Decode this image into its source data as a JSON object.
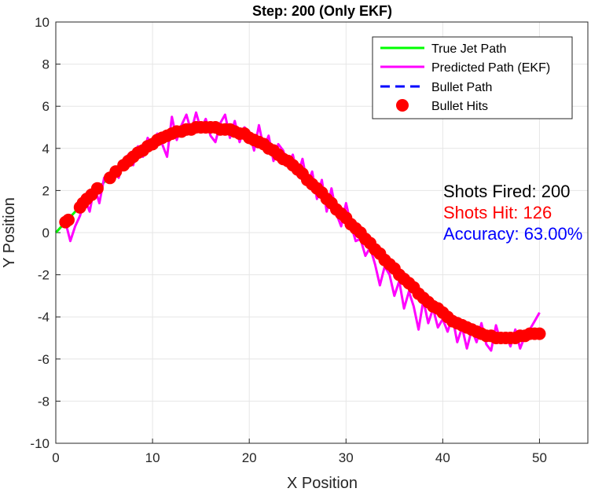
{
  "chart_data": {
    "type": "line",
    "title": "Step: 200 (Only EKF)",
    "xlabel": "X Position",
    "ylabel": "Y Position",
    "xlim": [
      0,
      55
    ],
    "ylim": [
      -10,
      10
    ],
    "xticks": [
      "0",
      "10",
      "20",
      "30",
      "40",
      "50"
    ],
    "yticks": [
      "-10",
      "-8",
      "-6",
      "-4",
      "-2",
      "0",
      "2",
      "4",
      "6",
      "8",
      "10"
    ],
    "grid": true,
    "legend_placement": "top-right",
    "legend": [
      {
        "label": "True Jet Path",
        "color": "#00ff00",
        "style": "solid-line"
      },
      {
        "label": "Predicted Path (EKF)",
        "color": "#ff00ff",
        "style": "solid-line"
      },
      {
        "label": "Bullet Path",
        "color": "#0000ff",
        "style": "dashed-line"
      },
      {
        "label": "Bullet Hits",
        "color": "#ff0000",
        "style": "circle-marker"
      }
    ],
    "true_path": {
      "formula": "y = 5*sin(x/10)",
      "x_start": 0,
      "x_end": 50
    },
    "predicted_path": {
      "x": [
        1.0,
        1.5,
        2.0,
        2.5,
        3.0,
        3.5,
        4.0,
        4.5,
        5.0,
        5.5,
        6.0,
        6.5,
        7.0,
        7.5,
        8.0,
        8.5,
        9.0,
        9.5,
        10.0,
        10.5,
        11.0,
        11.5,
        12.0,
        12.5,
        13.0,
        13.5,
        14.0,
        14.5,
        15.0,
        15.5,
        16.0,
        16.5,
        17.0,
        17.5,
        18.0,
        18.5,
        19.0,
        19.5,
        20.0,
        20.5,
        21.0,
        21.5,
        22.0,
        22.5,
        23.0,
        23.5,
        24.0,
        24.5,
        25.0,
        25.5,
        26.0,
        26.5,
        27.0,
        27.5,
        28.0,
        28.5,
        29.0,
        29.5,
        30.0,
        30.5,
        31.0,
        31.5,
        32.0,
        32.5,
        33.0,
        33.5,
        34.0,
        34.5,
        35.0,
        35.5,
        36.0,
        36.5,
        37.0,
        37.5,
        38.0,
        38.5,
        39.0,
        39.5,
        40.0,
        40.5,
        41.0,
        41.5,
        42.0,
        42.5,
        43.0,
        43.5,
        44.0,
        44.5,
        45.0,
        45.5,
        46.0,
        46.5,
        47.0,
        47.5,
        48.0,
        48.5,
        49.0,
        49.5,
        50.0
      ],
      "y": [
        0.5,
        -0.4,
        0.3,
        0.8,
        1.6,
        1.0,
        2.2,
        1.4,
        2.6,
        2.5,
        3.1,
        2.6,
        3.4,
        3.7,
        3.2,
        4.1,
        3.6,
        4.5,
        4.0,
        4.7,
        4.2,
        3.6,
        5.5,
        4.4,
        5.1,
        5.6,
        4.8,
        5.7,
        4.9,
        5.4,
        4.6,
        4.3,
        5.2,
        5.6,
        4.5,
        5.3,
        4.3,
        5.0,
        4.8,
        3.9,
        5.1,
        4.0,
        4.6,
        3.4,
        4.2,
        3.9,
        3.2,
        3.7,
        2.7,
        3.5,
        2.3,
        2.9,
        1.6,
        2.5,
        1.0,
        2.1,
        0.9,
        0.3,
        1.4,
        0.4,
        -0.4,
        -0.3,
        -1.1,
        -0.7,
        -1.5,
        -2.5,
        -1.6,
        -2.0,
        -3.0,
        -2.3,
        -3.6,
        -2.8,
        -3.5,
        -4.6,
        -3.2,
        -4.3,
        -3.6,
        -4.5,
        -4.1,
        -4.7,
        -4.0,
        -5.2,
        -4.5,
        -5.5,
        -4.6,
        -5.2,
        -4.3,
        -5.3,
        -5.6,
        -4.4,
        -5.2,
        -4.8,
        -5.4,
        -4.6,
        -5.5,
        -4.9,
        -4.6,
        -4.2,
        -3.8
      ]
    },
    "bullet_hits": {
      "x": [
        1.0,
        1.3,
        2.5,
        2.8,
        3.2,
        3.7,
        4.3,
        5.6,
        6.2,
        7.0,
        7.5,
        8.0,
        8.5,
        9.0,
        9.5,
        10.0,
        10.5,
        11.0,
        11.5,
        12.0,
        12.5,
        13.0,
        13.5,
        14.0,
        14.5,
        15.0,
        15.5,
        16.0,
        16.5,
        17.0,
        17.5,
        18.0,
        18.5,
        19.0,
        19.5,
        20.0,
        20.5,
        21.0,
        21.5,
        22.0,
        22.5,
        23.0,
        23.5,
        24.0,
        24.5,
        25.0,
        25.5,
        26.0,
        26.5,
        27.0,
        27.5,
        28.0,
        28.5,
        29.0,
        29.5,
        30.0,
        30.5,
        31.0,
        31.5,
        32.0,
        32.5,
        33.0,
        33.5,
        34.0,
        34.5,
        35.0,
        35.5,
        36.0,
        36.5,
        37.0,
        37.5,
        38.0,
        38.5,
        39.0,
        39.5,
        40.0,
        40.5,
        41.0,
        41.5,
        42.0,
        42.5,
        43.0,
        43.5,
        44.0,
        44.5,
        45.0,
        45.5,
        46.0,
        46.5,
        47.0,
        47.5,
        48.0,
        48.5,
        49.0,
        49.5,
        50.0
      ],
      "y": [
        0.5,
        0.6,
        1.2,
        1.4,
        1.6,
        1.8,
        2.1,
        2.6,
        2.9,
        3.2,
        3.4,
        3.6,
        3.8,
        3.9,
        4.1,
        4.2,
        4.4,
        4.5,
        4.6,
        4.7,
        4.8,
        4.8,
        4.9,
        4.9,
        5.0,
        5.0,
        5.0,
        5.0,
        5.0,
        4.9,
        4.9,
        4.9,
        4.8,
        4.7,
        4.7,
        4.5,
        4.4,
        4.3,
        4.2,
        4.0,
        3.9,
        3.7,
        3.5,
        3.4,
        3.2,
        3.0,
        2.8,
        2.5,
        2.3,
        2.1,
        1.9,
        1.6,
        1.4,
        1.1,
        0.9,
        0.7,
        0.4,
        0.2,
        0.0,
        -0.3,
        -0.5,
        -0.8,
        -1.0,
        -1.3,
        -1.5,
        -1.7,
        -2.0,
        -2.2,
        -2.4,
        -2.6,
        -2.9,
        -3.1,
        -3.3,
        -3.5,
        -3.6,
        -3.8,
        -4.0,
        -4.2,
        -4.3,
        -4.4,
        -4.5,
        -4.6,
        -4.7,
        -4.8,
        -4.9,
        -4.9,
        -5.0,
        -5.0,
        -5.0,
        -5.0,
        -5.0,
        -4.9,
        -4.9,
        -4.8,
        -4.8,
        -4.8
      ]
    },
    "annotations": [
      {
        "text": "Shots Fired: 200",
        "color": "#000000"
      },
      {
        "text": "Shots Hit: 126",
        "color": "#ff0000"
      },
      {
        "text": "Accuracy: 63.00%",
        "color": "#0000ff"
      }
    ]
  }
}
